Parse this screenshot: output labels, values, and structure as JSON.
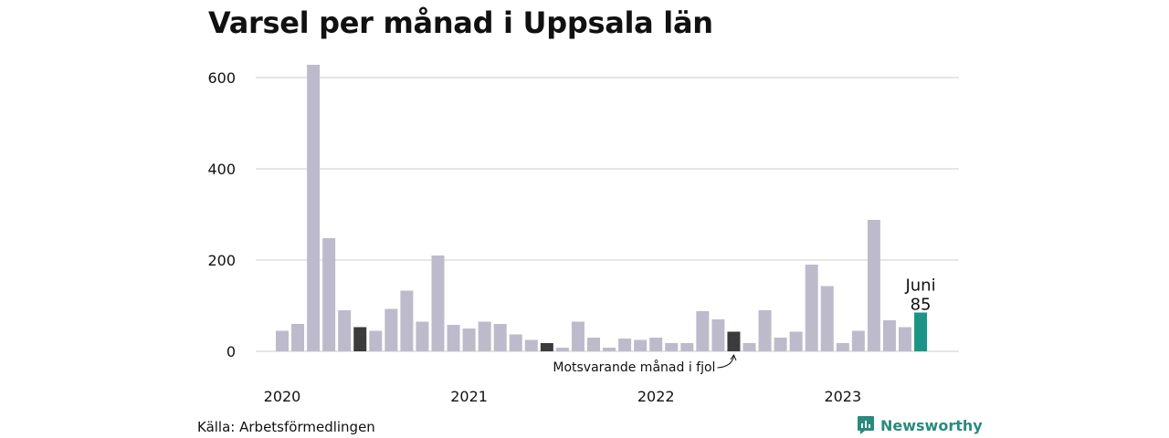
{
  "title": "Varsel per månad i Uppsala län",
  "source": "Källa: Arbetsförmedlingen",
  "brand": "Newsworthy",
  "colors": {
    "bar": "#bdbbcb",
    "same_month_last_year": "#3b3b3b",
    "highlight": "#1a9585",
    "grid": "#dddddd",
    "brand": "#2a8a7e"
  },
  "chart_data": {
    "type": "bar",
    "title": "Varsel per månad i Uppsala län",
    "xlabel": "",
    "ylabel": "",
    "ylim": [
      0,
      650
    ],
    "yticks": [
      0,
      200,
      400,
      600
    ],
    "grid": true,
    "year_labels": [
      {
        "label": "2020",
        "index": 0
      },
      {
        "label": "2021",
        "index": 12
      },
      {
        "label": "2022",
        "index": 24
      },
      {
        "label": "2023",
        "index": 36
      }
    ],
    "values": [
      45,
      60,
      628,
      248,
      90,
      53,
      45,
      93,
      133,
      65,
      210,
      58,
      50,
      65,
      60,
      37,
      25,
      18,
      8,
      65,
      30,
      8,
      28,
      25,
      30,
      18,
      18,
      88,
      70,
      43,
      18,
      90,
      30,
      43,
      190,
      143,
      18,
      45,
      288,
      68,
      53,
      85
    ],
    "dark_indices": [
      5,
      17,
      29
    ],
    "highlight_index": 41,
    "highlight_label": {
      "month": "Juni",
      "value": "85"
    },
    "annotation": {
      "text": "Motsvarande månad i fjol",
      "index": 29
    }
  }
}
